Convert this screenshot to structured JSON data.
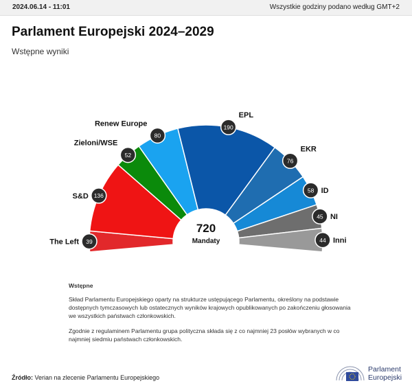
{
  "header": {
    "timestamp": "2024.06.14 - 11:01",
    "timezone_note": "Wszystkie godziny podano według GMT+2"
  },
  "title": "Parlament Europejski 2024–2029",
  "subtitle": "Wstępne wyniki",
  "chart_data": {
    "type": "hemicycle",
    "total": 720,
    "total_label": "Mandaty",
    "groups": [
      {
        "name": "The Left",
        "seats": 39,
        "color": "#e2282b"
      },
      {
        "name": "S&D",
        "seats": 136,
        "color": "#ef1414"
      },
      {
        "name": "Zieloni/WSE",
        "seats": 52,
        "color": "#0b8a0b"
      },
      {
        "name": "Renew Europe",
        "seats": 80,
        "color": "#1aa3f0"
      },
      {
        "name": "EPL",
        "seats": 190,
        "color": "#0b56a8"
      },
      {
        "name": "EKR",
        "seats": 76,
        "color": "#1f6db0"
      },
      {
        "name": "ID",
        "seats": 58,
        "color": "#1689d6"
      },
      {
        "name": "NI",
        "seats": 45,
        "color": "#6e6e6e"
      },
      {
        "name": "Inni",
        "seats": 44,
        "color": "#999999"
      }
    ]
  },
  "notes": {
    "heading": "Wstępne",
    "paragraph1": "Skład Parlamentu Europejskiego oparty na strukturze ustępującego Parlamentu, określony na podstawie dostępnych tymczasowych lub ostatecznych wyników krajowych opublikowanych po zakończeniu głosowania we wszystkich państwach członkowskich.",
    "paragraph2": "Zgodnie z regulaminem Parlamentu grupa polityczna składa się z co najmniej 23 posłów wybranych w co najmniej siedmiu państwach członkowskich."
  },
  "source": {
    "label": "Źródło:",
    "text": "Verian na zlecenie Parlamentu Europejskiego"
  },
  "logo": {
    "line1": "Parlament",
    "line2": "Europejski"
  }
}
